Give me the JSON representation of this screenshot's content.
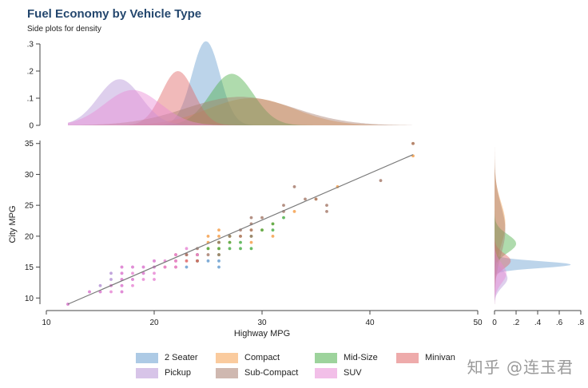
{
  "chart_data": {
    "type": "scatter",
    "title": "Fuel Economy by Vehicle Type",
    "subtitle": "Side plots for density",
    "xlabel": "Highway MPG",
    "ylabel": "City MPG",
    "xlim": [
      10,
      50
    ],
    "ylim": [
      9,
      36
    ],
    "x_ticks": [
      "10",
      "20",
      "30",
      "40",
      "50"
    ],
    "y_ticks": [
      "10",
      "15",
      "20",
      "25",
      "30",
      "35"
    ],
    "top_density_ticks": [
      "0",
      ".1",
      ".2",
      ".3"
    ],
    "top_density_max": 0.3,
    "right_density_ticks": [
      "0",
      ".2",
      ".4",
      ".6",
      ".8"
    ],
    "right_density_max": 0.8,
    "fit_line": {
      "x": [
        12,
        44
      ],
      "y": [
        9,
        33.2
      ],
      "color": "#7a7a7a"
    },
    "series": [
      {
        "name": "2 Seater",
        "color": "#6a9fd0",
        "top_density": {
          "peak": 0.31,
          "mean": 24.8,
          "sd": 1.3
        },
        "right_density": {
          "peak": 0.71,
          "mean": 15.4,
          "sd": 0.55
        },
        "points": [
          [
            23,
            15
          ],
          [
            24,
            16
          ],
          [
            25,
            16
          ],
          [
            26,
            15
          ],
          [
            26,
            16
          ]
        ]
      },
      {
        "name": "Compact",
        "color": "#f5a04e",
        "top_density": {
          "peak": 0.1,
          "mean": 29,
          "sd": 4
        },
        "right_density": {
          "peak": 0.1,
          "mean": 22,
          "sd": 3.5
        },
        "points": [
          [
            25,
            18
          ],
          [
            25,
            19
          ],
          [
            25,
            20
          ],
          [
            26,
            18
          ],
          [
            26,
            19
          ],
          [
            26,
            20
          ],
          [
            26,
            21
          ],
          [
            27,
            19
          ],
          [
            27,
            20
          ],
          [
            28,
            20
          ],
          [
            29,
            21
          ],
          [
            30,
            21
          ],
          [
            31,
            20
          ],
          [
            31,
            22
          ],
          [
            33,
            24
          ],
          [
            35,
            26
          ],
          [
            37,
            28
          ],
          [
            44,
            33
          ],
          [
            44,
            35
          ],
          [
            24,
            17
          ],
          [
            29,
            19
          ]
        ]
      },
      {
        "name": "Mid-Size",
        "color": "#4daf4a",
        "top_density": {
          "peak": 0.19,
          "mean": 27.2,
          "sd": 2
        },
        "right_density": {
          "peak": 0.2,
          "mean": 18.8,
          "sd": 1.5
        },
        "points": [
          [
            24,
            17
          ],
          [
            25,
            18
          ],
          [
            26,
            17
          ],
          [
            26,
            18
          ],
          [
            26,
            19
          ],
          [
            27,
            18
          ],
          [
            27,
            19
          ],
          [
            27,
            20
          ],
          [
            28,
            19
          ],
          [
            29,
            18
          ],
          [
            29,
            20
          ],
          [
            30,
            21
          ],
          [
            31,
            21
          ],
          [
            31,
            22
          ],
          [
            32,
            23
          ],
          [
            24,
            16
          ],
          [
            28,
            18
          ]
        ]
      },
      {
        "name": "Minivan",
        "color": "#e06666",
        "top_density": {
          "peak": 0.2,
          "mean": 22.2,
          "sd": 1.5
        },
        "right_density": {
          "peak": 0.15,
          "mean": 16,
          "sd": 1.2
        },
        "points": [
          [
            21,
            15
          ],
          [
            22,
            15
          ],
          [
            22,
            16
          ],
          [
            23,
            16
          ],
          [
            23,
            17
          ],
          [
            24,
            16
          ],
          [
            24,
            17
          ],
          [
            22,
            17
          ]
        ]
      },
      {
        "name": "Pickup",
        "color": "#b694d6",
        "top_density": {
          "peak": 0.17,
          "mean": 16.8,
          "sd": 2
        },
        "right_density": {
          "peak": 0.12,
          "mean": 13.2,
          "sd": 1.4
        },
        "points": [
          [
            12,
            9
          ],
          [
            14,
            11
          ],
          [
            15,
            11
          ],
          [
            15,
            12
          ],
          [
            16,
            12
          ],
          [
            16,
            13
          ],
          [
            17,
            11
          ],
          [
            17,
            12
          ],
          [
            17,
            13
          ],
          [
            17,
            14
          ],
          [
            18,
            13
          ],
          [
            19,
            14
          ],
          [
            20,
            15
          ],
          [
            20,
            16
          ],
          [
            19,
            15
          ],
          [
            16,
            14
          ],
          [
            18,
            15
          ],
          [
            17,
            15
          ]
        ]
      },
      {
        "name": "Sub-Compact",
        "color": "#a87e6f",
        "top_density": {
          "peak": 0.105,
          "mean": 28,
          "sd": 5
        },
        "right_density": {
          "peak": 0.1,
          "mean": 21,
          "sd": 4
        },
        "points": [
          [
            24,
            18
          ],
          [
            25,
            17
          ],
          [
            26,
            17
          ],
          [
            26,
            19
          ],
          [
            27,
            20
          ],
          [
            28,
            20
          ],
          [
            29,
            21
          ],
          [
            29,
            22
          ],
          [
            29,
            23
          ],
          [
            30,
            23
          ],
          [
            32,
            25
          ],
          [
            32,
            24
          ],
          [
            33,
            28
          ],
          [
            34,
            26
          ],
          [
            35,
            26
          ],
          [
            36,
            25
          ],
          [
            36,
            24
          ],
          [
            41,
            29
          ],
          [
            44,
            35
          ],
          [
            23,
            17
          ],
          [
            28,
            21
          ],
          [
            29,
            20
          ]
        ]
      },
      {
        "name": "SUV",
        "color": "#e88ad5",
        "top_density": {
          "peak": 0.13,
          "mean": 18,
          "sd": 2.6
        },
        "right_density": {
          "peak": 0.11,
          "mean": 14,
          "sd": 1.6
        },
        "points": [
          [
            12,
            9
          ],
          [
            14,
            11
          ],
          [
            15,
            11
          ],
          [
            16,
            11
          ],
          [
            16,
            12
          ],
          [
            17,
            11
          ],
          [
            17,
            12
          ],
          [
            17,
            13
          ],
          [
            17,
            14
          ],
          [
            17,
            15
          ],
          [
            18,
            12
          ],
          [
            18,
            13
          ],
          [
            18,
            14
          ],
          [
            18,
            15
          ],
          [
            19,
            13
          ],
          [
            19,
            14
          ],
          [
            19,
            15
          ],
          [
            20,
            14
          ],
          [
            20,
            15
          ],
          [
            20,
            16
          ],
          [
            21,
            15
          ],
          [
            21,
            16
          ],
          [
            22,
            16
          ],
          [
            22,
            17
          ],
          [
            23,
            18
          ],
          [
            24,
            17
          ],
          [
            22,
            15
          ],
          [
            20,
            13
          ]
        ]
      }
    ]
  },
  "watermark": "知乎 @连玉君"
}
